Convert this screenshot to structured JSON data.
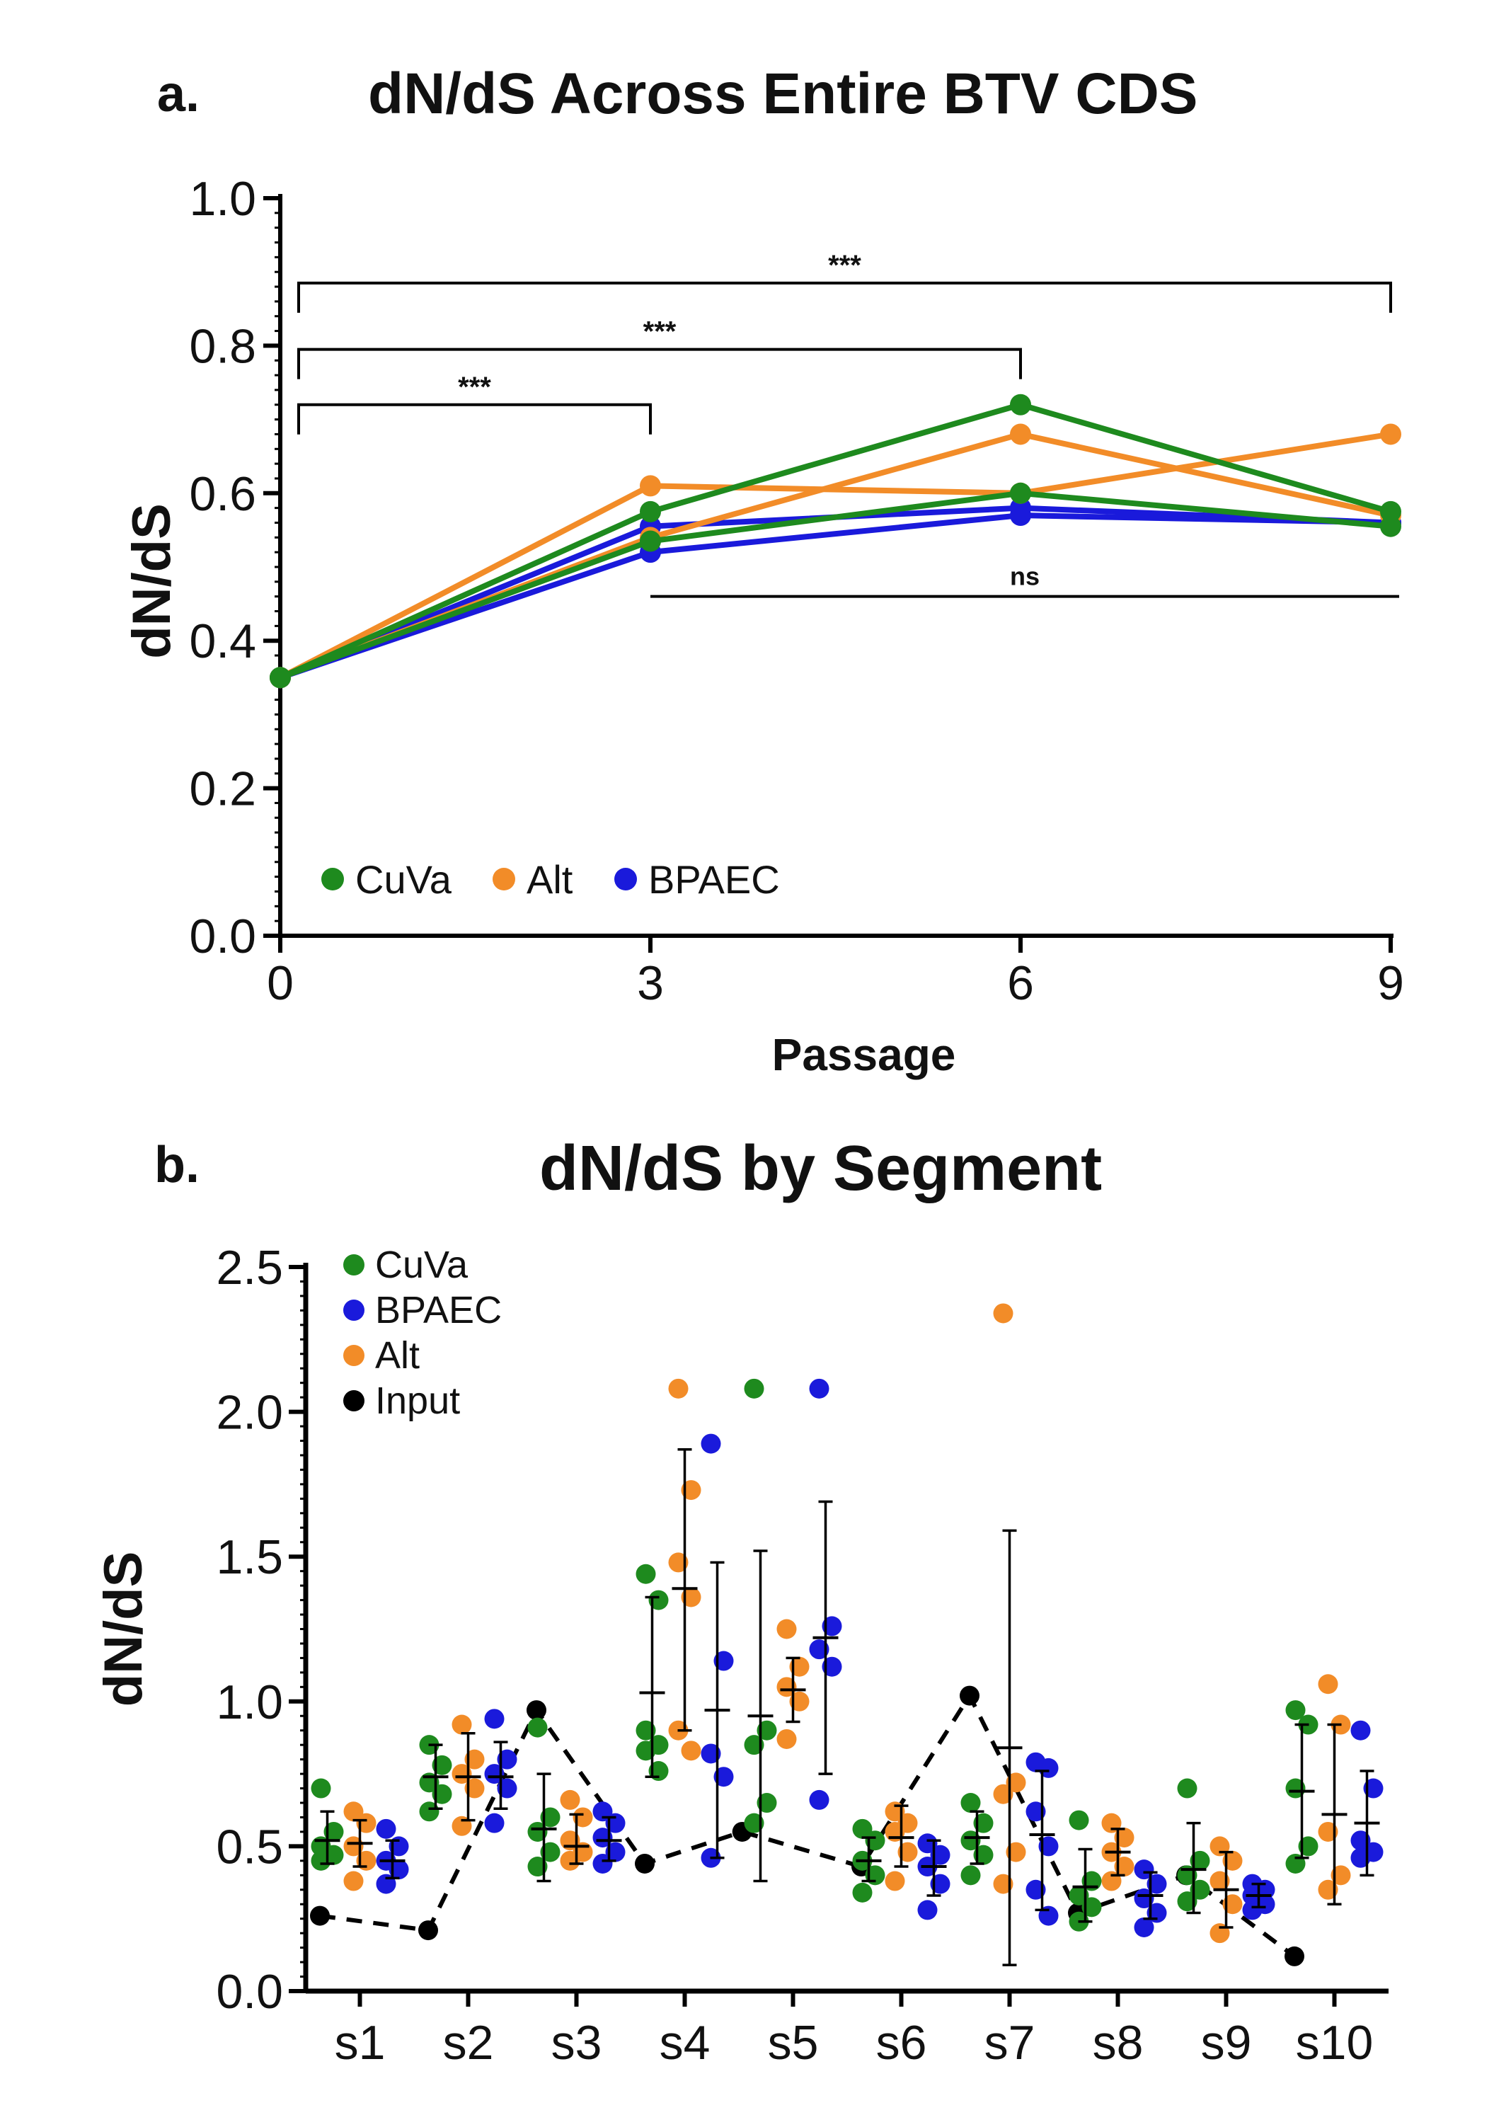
{
  "panel_a": {
    "label": "a.",
    "title": "dN/dS Across Entire BTV CDS"
  },
  "panel_b": {
    "label": "b.",
    "title": "dN/dS by Segment"
  },
  "colors": {
    "CuVa": "#1e8a1e",
    "Alt": "#f28c28",
    "BPAEC": "#1a1adb",
    "Input": "#000000",
    "axis": "#000000"
  },
  "chart_data": [
    {
      "type": "line",
      "title": "dN/dS Across Entire BTV CDS",
      "xlabel": "Passage",
      "ylabel": "dN/dS",
      "x": [
        0,
        3,
        6,
        9
      ],
      "xticks": [
        "0",
        "3",
        "6",
        "9"
      ],
      "yticks": [
        "0.0",
        "0.2",
        "0.4",
        "0.6",
        "0.8",
        "1.0"
      ],
      "xlim": [
        0,
        9
      ],
      "ylim": [
        0,
        1.0
      ],
      "legend": [
        "CuVa",
        "Alt",
        "BPAEC"
      ],
      "legend_position": "bottom-left",
      "series": [
        {
          "name": "CuVa",
          "group": "CuVa",
          "values": [
            0.35,
            0.575,
            0.72,
            0.575
          ]
        },
        {
          "name": "CuVa",
          "group": "CuVa",
          "values": [
            0.35,
            0.535,
            0.6,
            0.555
          ]
        },
        {
          "name": "Alt",
          "group": "Alt",
          "values": [
            0.35,
            0.61,
            0.6,
            0.68
          ]
        },
        {
          "name": "Alt",
          "group": "Alt",
          "values": [
            0.35,
            0.54,
            0.68,
            0.57
          ]
        },
        {
          "name": "BPAEC",
          "group": "BPAEC",
          "values": [
            0.35,
            0.555,
            0.58,
            0.56
          ]
        },
        {
          "name": "BPAEC",
          "group": "BPAEC",
          "values": [
            0.35,
            0.52,
            0.57,
            0.56
          ]
        }
      ],
      "annotations": [
        {
          "type": "bracket",
          "from": 0,
          "to": 3,
          "y": 0.72,
          "text": "***"
        },
        {
          "type": "bracket",
          "from": 0,
          "to": 6,
          "y": 0.795,
          "text": "***"
        },
        {
          "type": "bracket",
          "from": 0,
          "to": 9,
          "y": 0.885,
          "text": "***"
        },
        {
          "type": "line",
          "from": 3,
          "to": 9,
          "y": 0.46,
          "text": "ns"
        }
      ]
    },
    {
      "type": "scatter",
      "title": "dN/dS by Segment",
      "xlabel": "",
      "ylabel": "dN/dS",
      "categories": [
        "s1",
        "s2",
        "s3",
        "s4",
        "s5",
        "s6",
        "s7",
        "s8",
        "s9",
        "s10"
      ],
      "yticks": [
        "0.0",
        "0.5",
        "1.0",
        "1.5",
        "2.0",
        "2.5"
      ],
      "ylim": [
        0,
        2.5
      ],
      "legend": [
        "CuVa",
        "BPAEC",
        "Alt",
        "Input"
      ],
      "legend_position": "top-left",
      "groups": [
        "CuVa",
        "Alt",
        "BPAEC"
      ],
      "points": {
        "CuVa": [
          [
            0.7,
            0.55,
            0.5,
            0.47,
            0.45
          ],
          [
            0.85,
            0.78,
            0.72,
            0.68,
            0.62
          ],
          [
            0.91,
            0.6,
            0.55,
            0.48,
            0.43
          ],
          [
            1.44,
            1.35,
            0.9,
            0.85,
            0.83,
            0.76
          ],
          [
            2.08,
            0.9,
            0.85,
            0.65,
            0.58
          ],
          [
            0.56,
            0.52,
            0.45,
            0.4,
            0.34
          ],
          [
            0.65,
            0.58,
            0.52,
            0.47,
            0.4
          ],
          [
            0.59,
            0.38,
            0.33,
            0.29,
            0.24
          ],
          [
            0.7,
            0.45,
            0.4,
            0.35,
            0.31
          ],
          [
            0.97,
            0.92,
            0.7,
            0.5,
            0.44
          ]
        ],
        "Alt": [
          [
            0.62,
            0.58,
            0.5,
            0.45,
            0.38
          ],
          [
            0.92,
            0.8,
            0.75,
            0.7,
            0.57
          ],
          [
            0.66,
            0.6,
            0.52,
            0.48,
            0.45
          ],
          [
            2.08,
            1.73,
            1.48,
            1.36,
            0.9,
            0.83
          ],
          [
            1.25,
            1.12,
            1.05,
            1.0,
            0.87
          ],
          [
            0.62,
            0.58,
            0.55,
            0.48,
            0.38
          ],
          [
            2.34,
            0.72,
            0.68,
            0.48,
            0.37
          ],
          [
            0.58,
            0.53,
            0.48,
            0.43,
            0.38
          ],
          [
            0.5,
            0.45,
            0.38,
            0.3,
            0.2
          ],
          [
            1.06,
            0.92,
            0.55,
            0.4,
            0.35
          ]
        ],
        "BPAEC": [
          [
            0.56,
            0.5,
            0.45,
            0.42,
            0.37
          ],
          [
            0.94,
            0.8,
            0.75,
            0.7,
            0.58
          ],
          [
            0.62,
            0.58,
            0.53,
            0.48,
            0.44
          ],
          [
            1.89,
            1.14,
            0.82,
            0.74,
            0.46
          ],
          [
            2.08,
            1.26,
            1.18,
            1.12,
            0.66
          ],
          [
            0.51,
            0.47,
            0.43,
            0.37,
            0.28
          ],
          [
            0.79,
            0.77,
            0.62,
            0.5,
            0.35,
            0.26
          ],
          [
            0.42,
            0.37,
            0.32,
            0.27,
            0.22
          ],
          [
            0.37,
            0.35,
            0.33,
            0.3,
            0.28
          ],
          [
            0.9,
            0.7,
            0.52,
            0.48,
            0.46
          ]
        ]
      },
      "summary": {
        "CuVa": [
          {
            "mean": 0.52,
            "lo": 0.44,
            "hi": 0.62
          },
          {
            "mean": 0.74,
            "lo": 0.63,
            "hi": 0.85
          },
          {
            "mean": 0.56,
            "lo": 0.38,
            "hi": 0.75
          },
          {
            "mean": 1.03,
            "lo": 0.74,
            "hi": 1.36
          },
          {
            "mean": 0.95,
            "lo": 0.38,
            "hi": 1.52
          },
          {
            "mean": 0.45,
            "lo": 0.38,
            "hi": 0.53
          },
          {
            "mean": 0.53,
            "lo": 0.44,
            "hi": 0.62
          },
          {
            "mean": 0.36,
            "lo": 0.24,
            "hi": 0.49
          },
          {
            "mean": 0.42,
            "lo": 0.27,
            "hi": 0.58
          },
          {
            "mean": 0.69,
            "lo": 0.46,
            "hi": 0.92
          }
        ],
        "Alt": [
          {
            "mean": 0.51,
            "lo": 0.43,
            "hi": 0.59
          },
          {
            "mean": 0.74,
            "lo": 0.59,
            "hi": 0.89
          },
          {
            "mean": 0.5,
            "lo": 0.44,
            "hi": 0.61
          },
          {
            "mean": 1.39,
            "lo": 0.9,
            "hi": 1.87
          },
          {
            "mean": 1.04,
            "lo": 0.93,
            "hi": 1.15
          },
          {
            "mean": 0.53,
            "lo": 0.43,
            "hi": 0.64
          },
          {
            "mean": 0.84,
            "lo": 0.09,
            "hi": 1.59
          },
          {
            "mean": 0.48,
            "lo": 0.4,
            "hi": 0.56
          },
          {
            "mean": 0.35,
            "lo": 0.22,
            "hi": 0.48
          },
          {
            "mean": 0.61,
            "lo": 0.3,
            "hi": 0.92
          }
        ],
        "BPAEC": [
          {
            "mean": 0.45,
            "lo": 0.39,
            "hi": 0.52
          },
          {
            "mean": 0.74,
            "lo": 0.63,
            "hi": 0.86
          },
          {
            "mean": 0.52,
            "lo": 0.45,
            "hi": 0.6
          },
          {
            "mean": 0.97,
            "lo": 0.46,
            "hi": 1.48
          },
          {
            "mean": 1.22,
            "lo": 0.75,
            "hi": 1.69
          },
          {
            "mean": 0.43,
            "lo": 0.33,
            "hi": 0.52
          },
          {
            "mean": 0.54,
            "lo": 0.28,
            "hi": 0.76
          },
          {
            "mean": 0.33,
            "lo": 0.25,
            "hi": 0.41
          },
          {
            "mean": 0.33,
            "lo": 0.29,
            "hi": 0.37
          },
          {
            "mean": 0.58,
            "lo": 0.4,
            "hi": 0.76
          }
        ]
      },
      "input_series": {
        "name": "Input",
        "x": [
          0.0,
          1.0,
          2.0,
          3.0,
          3.9,
          5.0,
          6.0,
          7.0,
          8.0,
          9.0
        ],
        "values": [
          0.26,
          0.21,
          0.97,
          0.44,
          0.55,
          0.43,
          1.02,
          0.27,
          0.4,
          0.12
        ]
      }
    }
  ]
}
